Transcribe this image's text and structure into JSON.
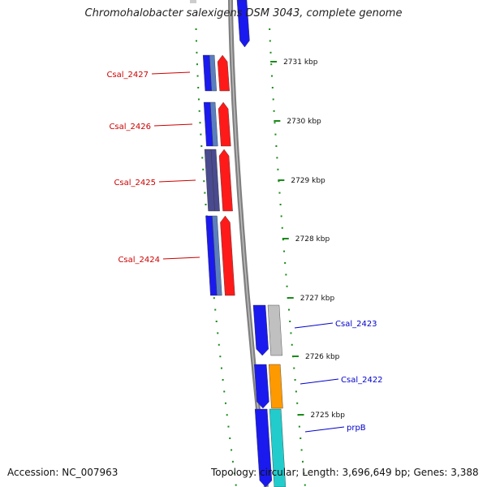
{
  "title": "Chromohalobacter salexigens DSM 3043, complete genome",
  "accession": "Accession: NC_007963",
  "summary": "Topology: circular; Length: 3,696,649 bp; Genes: 3,388",
  "scale_labels": [
    {
      "position_kbp": 2731,
      "label": "2731 kbp"
    },
    {
      "position_kbp": 2730,
      "label": "2730 kbp"
    },
    {
      "position_kbp": 2729,
      "label": "2729 kbp"
    },
    {
      "position_kbp": 2728,
      "label": "2728 kbp"
    },
    {
      "position_kbp": 2727,
      "label": "2727 kbp"
    },
    {
      "position_kbp": 2726,
      "label": "2726 kbp"
    },
    {
      "position_kbp": 2725,
      "label": "2725 kbp"
    }
  ],
  "gene_labels": [
    {
      "name": "Csal_2427",
      "strand": "reverse",
      "color": "#cc0000"
    },
    {
      "name": "Csal_2426",
      "strand": "reverse",
      "color": "#cc0000"
    },
    {
      "name": "Csal_2425",
      "strand": "reverse",
      "color": "#cc0000"
    },
    {
      "name": "Csal_2424",
      "strand": "reverse",
      "color": "#cc0000"
    },
    {
      "name": "Csal_2423",
      "strand": "forward",
      "color": "#0000cc"
    },
    {
      "name": "Csal_2422",
      "strand": "forward",
      "color": "#0000cc"
    },
    {
      "name": "prpB",
      "strand": "forward",
      "color": "#0000cc"
    }
  ],
  "colors": {
    "backbone": "#808080",
    "tick": "#1a8a1a",
    "reverse_cds": "#ff1a1a",
    "forward_cds": "#1a1aee",
    "gray_feature": "#c0c0c0",
    "orange_feature": "#ff9900",
    "cyan_feature": "#22cccc",
    "slate_feature": "#4a4a90"
  }
}
